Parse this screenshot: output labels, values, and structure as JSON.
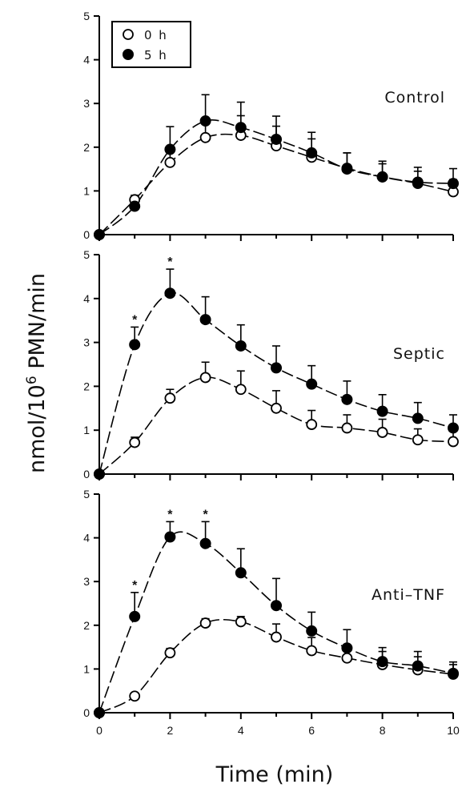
{
  "chart_data": [
    {
      "type": "line",
      "title": "Control",
      "xlabel": "Time (min)",
      "ylabel": "nmol/10⁶ PMN/min",
      "x": [
        0,
        1,
        2,
        3,
        4,
        5,
        6,
        7,
        8,
        9,
        10
      ],
      "xlim": [
        0,
        10
      ],
      "ylim": [
        0,
        5
      ],
      "xticks": [
        "0",
        "2",
        "4",
        "6",
        "8",
        "10"
      ],
      "yticks": [
        "0",
        "1",
        "2",
        "3",
        "4",
        "5"
      ],
      "series": [
        {
          "name": "0 h",
          "marker": "open-circle",
          "values": [
            0,
            0.8,
            1.65,
            2.22,
            2.27,
            2.03,
            1.77,
            1.52,
            1.32,
            1.17,
            0.98
          ],
          "error": [
            0,
            0.1,
            0.32,
            0.42,
            0.45,
            0.45,
            0.42,
            0.35,
            0.3,
            0.28,
            0.28
          ]
        },
        {
          "name": "5 h",
          "marker": "filled-circle",
          "values": [
            0,
            0.65,
            1.95,
            2.6,
            2.45,
            2.18,
            1.87,
            1.5,
            1.32,
            1.2,
            1.17
          ],
          "error": [
            0,
            0.08,
            0.52,
            0.6,
            0.58,
            0.53,
            0.47,
            0.37,
            0.36,
            0.34,
            0.34
          ]
        }
      ],
      "annotations": []
    },
    {
      "type": "line",
      "title": "Septic",
      "x": [
        0,
        1,
        2,
        3,
        4,
        5,
        6,
        7,
        8,
        9,
        10
      ],
      "xlim": [
        0,
        10
      ],
      "ylim": [
        0,
        5
      ],
      "yticks": [
        "0",
        "1",
        "2",
        "3",
        "4",
        "5"
      ],
      "series": [
        {
          "name": "0 h",
          "marker": "open-circle",
          "values": [
            0,
            0.72,
            1.73,
            2.2,
            1.93,
            1.5,
            1.13,
            1.05,
            0.95,
            0.78,
            0.74
          ],
          "error": [
            0,
            0.12,
            0.2,
            0.35,
            0.42,
            0.4,
            0.32,
            0.3,
            0.3,
            0.25,
            0.25
          ]
        },
        {
          "name": "5 h",
          "marker": "filled-circle",
          "values": [
            0,
            2.95,
            4.12,
            3.52,
            2.92,
            2.42,
            2.05,
            1.7,
            1.43,
            1.27,
            1.05
          ],
          "error": [
            0,
            0.4,
            0.55,
            0.52,
            0.48,
            0.5,
            0.42,
            0.42,
            0.38,
            0.36,
            0.3
          ]
        }
      ],
      "annotations": [
        {
          "x": 1,
          "text": "*"
        },
        {
          "x": 2,
          "text": "*"
        }
      ]
    },
    {
      "type": "line",
      "title": "Anti–TNF",
      "x": [
        0,
        1,
        2,
        3,
        4,
        5,
        6,
        7,
        8,
        9,
        10
      ],
      "xlim": [
        0,
        10
      ],
      "ylim": [
        0,
        5
      ],
      "xticks": [
        "0",
        "2",
        "4",
        "6",
        "8",
        "10"
      ],
      "yticks": [
        "0",
        "1",
        "2",
        "3",
        "4",
        "5"
      ],
      "series": [
        {
          "name": "0 h",
          "marker": "open-circle",
          "values": [
            0,
            0.38,
            1.37,
            2.05,
            2.08,
            1.73,
            1.42,
            1.25,
            1.1,
            0.98,
            0.88
          ],
          "error": [
            0,
            0.05,
            0.1,
            0.1,
            0.12,
            0.3,
            0.3,
            0.3,
            0.3,
            0.3,
            0.28
          ]
        },
        {
          "name": "5 h",
          "marker": "filled-circle",
          "values": [
            0,
            2.2,
            4.02,
            3.87,
            3.2,
            2.45,
            1.87,
            1.48,
            1.17,
            1.07,
            0.9
          ],
          "error": [
            0,
            0.55,
            0.35,
            0.5,
            0.55,
            0.62,
            0.43,
            0.42,
            0.32,
            0.33,
            0.2
          ]
        }
      ],
      "annotations": [
        {
          "x": 1,
          "text": "*"
        },
        {
          "x": 2,
          "text": "*"
        },
        {
          "x": 3,
          "text": "*"
        }
      ]
    }
  ],
  "legend": {
    "items": [
      {
        "label": "0 h",
        "marker": "open-circle"
      },
      {
        "label": "5 h",
        "marker": "filled-circle"
      }
    ]
  },
  "axes": {
    "ylabel_main": "nmol/10",
    "ylabel_sup": "6",
    "ylabel_rest": " PMN/min",
    "xlabel": "Time (min)"
  }
}
